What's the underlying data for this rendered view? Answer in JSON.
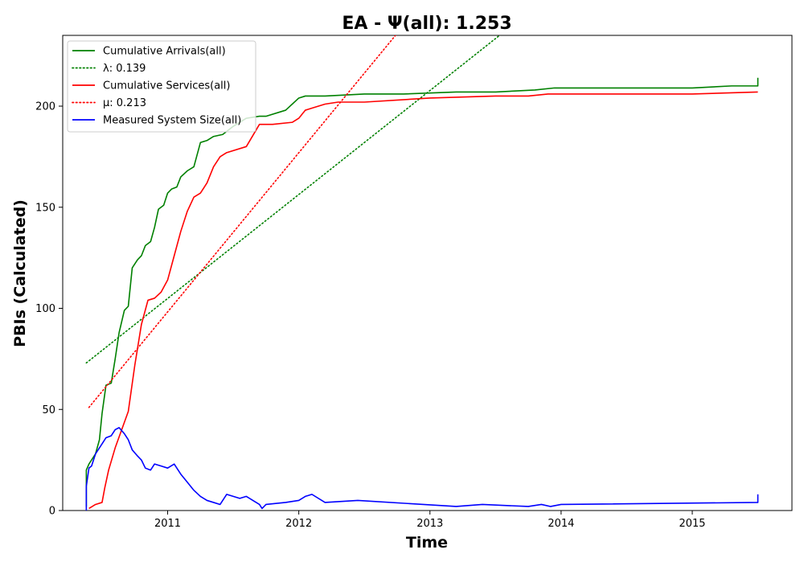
{
  "chart_data": {
    "type": "line",
    "title": "EA -  Ψ(all): 1.253",
    "xlabel": "Time",
    "ylabel": "PBIs (Calculated)",
    "xlim": [
      2010.2,
      2015.76
    ],
    "ylim": [
      0,
      235
    ],
    "x_ticks": [
      2011,
      2012,
      2013,
      2014,
      2015
    ],
    "y_ticks": [
      0,
      50,
      100,
      150,
      200
    ],
    "grid": false,
    "legend_position": "top-left",
    "colors": {
      "arrivals": "#008000",
      "services": "#ff0000",
      "system_size": "#0000ff"
    },
    "legend": [
      {
        "key": "arrivals",
        "label": "Cumulative Arrivals(all)",
        "style": "solid",
        "color": "#008000"
      },
      {
        "key": "lambda",
        "label": "λ: 0.139",
        "style": "dotted",
        "color": "#008000"
      },
      {
        "key": "services",
        "label": "Cumulative Services(all)",
        "style": "solid",
        "color": "#ff0000"
      },
      {
        "key": "mu",
        "label": "μ: 0.213",
        "style": "dotted",
        "color": "#ff0000"
      },
      {
        "key": "system_size",
        "label": "Measured System Size(all)",
        "style": "solid",
        "color": "#0000ff"
      }
    ],
    "series": [
      {
        "key": "arrivals",
        "name": "Cumulative Arrivals(all)",
        "style": "solid",
        "color": "#008000",
        "x": [
          2010.38,
          2010.38,
          2010.4,
          2010.45,
          2010.48,
          2010.5,
          2010.53,
          2010.57,
          2010.6,
          2010.63,
          2010.67,
          2010.7,
          2010.73,
          2010.77,
          2010.8,
          2010.83,
          2010.87,
          2010.9,
          2010.93,
          2010.97,
          2011.0,
          2011.03,
          2011.07,
          2011.1,
          2011.15,
          2011.2,
          2011.25,
          2011.3,
          2011.35,
          2011.42,
          2011.5,
          2011.6,
          2011.7,
          2011.75,
          2011.9,
          2012.0,
          2012.05,
          2012.2,
          2012.5,
          2012.8,
          2013.2,
          2013.5,
          2013.8,
          2013.95,
          2014.2,
          2014.6,
          2015.0,
          2015.3,
          2015.5,
          2015.5
        ],
        "y": [
          2,
          20,
          23,
          28,
          35,
          48,
          62,
          63,
          75,
          88,
          99,
          101,
          120,
          124,
          126,
          131,
          133,
          140,
          149,
          151,
          157,
          159,
          160,
          165,
          168,
          170,
          182,
          183,
          185,
          186,
          190,
          194,
          195,
          195,
          198,
          204,
          205,
          205,
          206,
          206,
          207,
          207,
          208,
          209,
          209,
          209,
          209,
          210,
          210,
          214
        ]
      },
      {
        "key": "lambda",
        "name": "λ: 0.139",
        "style": "dotted",
        "color": "#008000",
        "x": [
          2010.38,
          2013.55
        ],
        "y": [
          73,
          236
        ]
      },
      {
        "key": "services",
        "name": "Cumulative Services(all)",
        "style": "solid",
        "color": "#ff0000",
        "x": [
          2010.4,
          2010.45,
          2010.5,
          2010.52,
          2010.55,
          2010.6,
          2010.65,
          2010.7,
          2010.75,
          2010.8,
          2010.85,
          2010.9,
          2010.95,
          2011.0,
          2011.05,
          2011.1,
          2011.15,
          2011.2,
          2011.25,
          2011.3,
          2011.35,
          2011.4,
          2011.45,
          2011.6,
          2011.7,
          2011.8,
          2011.95,
          2012.0,
          2012.05,
          2012.1,
          2012.2,
          2012.3,
          2012.5,
          2013.0,
          2013.5,
          2013.75,
          2013.9,
          2014.5,
          2015.0,
          2015.5
        ],
        "y": [
          1,
          3,
          4,
          11,
          20,
          31,
          40,
          49,
          72,
          92,
          104,
          105,
          108,
          114,
          126,
          138,
          148,
          155,
          157,
          162,
          170,
          175,
          177,
          180,
          191,
          191,
          192,
          194,
          198,
          199,
          201,
          202,
          202,
          204,
          205,
          205,
          206,
          206,
          206,
          207
        ]
      },
      {
        "key": "mu",
        "name": "μ: 0.213",
        "style": "dotted",
        "color": "#ff0000",
        "x": [
          2010.4,
          2012.75
        ],
        "y": [
          51,
          236
        ]
      },
      {
        "key": "system_size",
        "name": "Measured System Size(all)",
        "style": "solid",
        "color": "#0000ff",
        "x": [
          2010.38,
          2010.38,
          2010.4,
          2010.42,
          2010.45,
          2010.48,
          2010.5,
          2010.53,
          2010.57,
          2010.6,
          2010.63,
          2010.67,
          2010.7,
          2010.73,
          2010.77,
          2010.8,
          2010.83,
          2010.87,
          2010.9,
          2010.95,
          2011.0,
          2011.05,
          2011.1,
          2011.15,
          2011.2,
          2011.25,
          2011.3,
          2011.35,
          2011.4,
          2011.45,
          2011.5,
          2011.55,
          2011.6,
          2011.65,
          2011.7,
          2011.72,
          2011.75,
          2011.9,
          2012.0,
          2012.05,
          2012.1,
          2012.2,
          2012.45,
          2013.2,
          2013.4,
          2013.75,
          2013.85,
          2013.92,
          2014.0,
          2015.5,
          2015.5
        ],
        "y": [
          0,
          12,
          21,
          22,
          28,
          31,
          33,
          36,
          37,
          40,
          41,
          38,
          35,
          30,
          27,
          25,
          21,
          20,
          23,
          22,
          21,
          23,
          18,
          14,
          10,
          7,
          5,
          4,
          3,
          8,
          7,
          6,
          7,
          5,
          3,
          1,
          3,
          4,
          5,
          7,
          8,
          4,
          5,
          2,
          3,
          2,
          3,
          2,
          3,
          4,
          8
        ]
      }
    ]
  }
}
